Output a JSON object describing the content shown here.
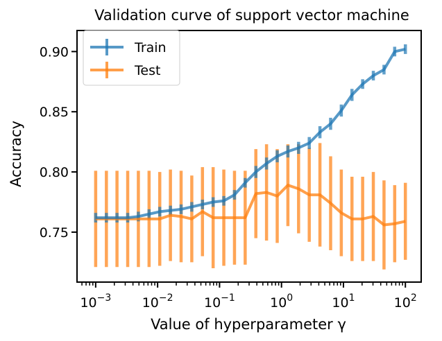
{
  "chart_data": {
    "type": "line",
    "title": "Validation curve of support vector machine",
    "xlabel": "Value of hyperparameter γ",
    "ylabel": "Accuracy",
    "xscale": "log",
    "xlim": [
      0.0005,
      180
    ],
    "ylim": [
      0.7085,
      0.9175
    ],
    "grid": false,
    "legend_position": "upper left",
    "x_ticks": [
      {
        "value": 0.001,
        "label": "10^-3"
      },
      {
        "value": 0.01,
        "label": "10^-2"
      },
      {
        "value": 0.1,
        "label": "10^-1"
      },
      {
        "value": 1,
        "label": "10^0"
      },
      {
        "value": 10,
        "label": "10^1"
      },
      {
        "value": 100,
        "label": "10^2"
      }
    ],
    "y_ticks": [
      {
        "value": 0.75,
        "label": "0.75"
      },
      {
        "value": 0.8,
        "label": "0.80"
      },
      {
        "value": 0.85,
        "label": "0.85"
      },
      {
        "value": 0.9,
        "label": "0.90"
      }
    ],
    "x": [
      0.001,
      0.00149,
      0.00221,
      0.00329,
      0.00489,
      0.00728,
      0.01083,
      0.01611,
      0.02395,
      0.03562,
      0.05298,
      0.0788,
      0.11721,
      0.17433,
      0.25929,
      0.38566,
      0.57362,
      0.85317,
      1.26896,
      1.88739,
      2.80722,
      4.17532,
      6.21017,
      9.23671,
      13.7382,
      20.4336,
      30.392,
      45.2035,
      67.2336,
      100.0
    ],
    "series": [
      {
        "name": "Train",
        "color": "#1f77b4",
        "values": [
          0.762,
          0.762,
          0.762,
          0.762,
          0.763,
          0.765,
          0.767,
          0.768,
          0.769,
          0.771,
          0.773,
          0.775,
          0.776,
          0.781,
          0.791,
          0.8,
          0.807,
          0.813,
          0.817,
          0.82,
          0.824,
          0.833,
          0.84,
          0.851,
          0.864,
          0.873,
          0.88,
          0.885,
          0.9,
          0.902
        ],
        "errors": [
          0.004,
          0.004,
          0.004,
          0.004,
          0.004,
          0.004,
          0.004,
          0.004,
          0.004,
          0.004,
          0.004,
          0.004,
          0.004,
          0.004,
          0.004,
          0.005,
          0.005,
          0.005,
          0.005,
          0.005,
          0.005,
          0.005,
          0.005,
          0.005,
          0.005,
          0.004,
          0.004,
          0.004,
          0.004,
          0.004
        ]
      },
      {
        "name": "Test",
        "color": "#ff7f0e",
        "values": [
          0.761,
          0.761,
          0.761,
          0.761,
          0.761,
          0.761,
          0.761,
          0.764,
          0.763,
          0.761,
          0.767,
          0.762,
          0.762,
          0.762,
          0.762,
          0.782,
          0.783,
          0.78,
          0.789,
          0.786,
          0.781,
          0.781,
          0.774,
          0.766,
          0.761,
          0.761,
          0.763,
          0.756,
          0.757,
          0.759
        ],
        "errors": [
          0.04,
          0.04,
          0.04,
          0.04,
          0.04,
          0.04,
          0.039,
          0.038,
          0.038,
          0.036,
          0.037,
          0.042,
          0.04,
          0.039,
          0.039,
          0.037,
          0.04,
          0.039,
          0.034,
          0.037,
          0.039,
          0.043,
          0.039,
          0.036,
          0.035,
          0.035,
          0.037,
          0.037,
          0.032,
          0.032
        ]
      }
    ]
  }
}
